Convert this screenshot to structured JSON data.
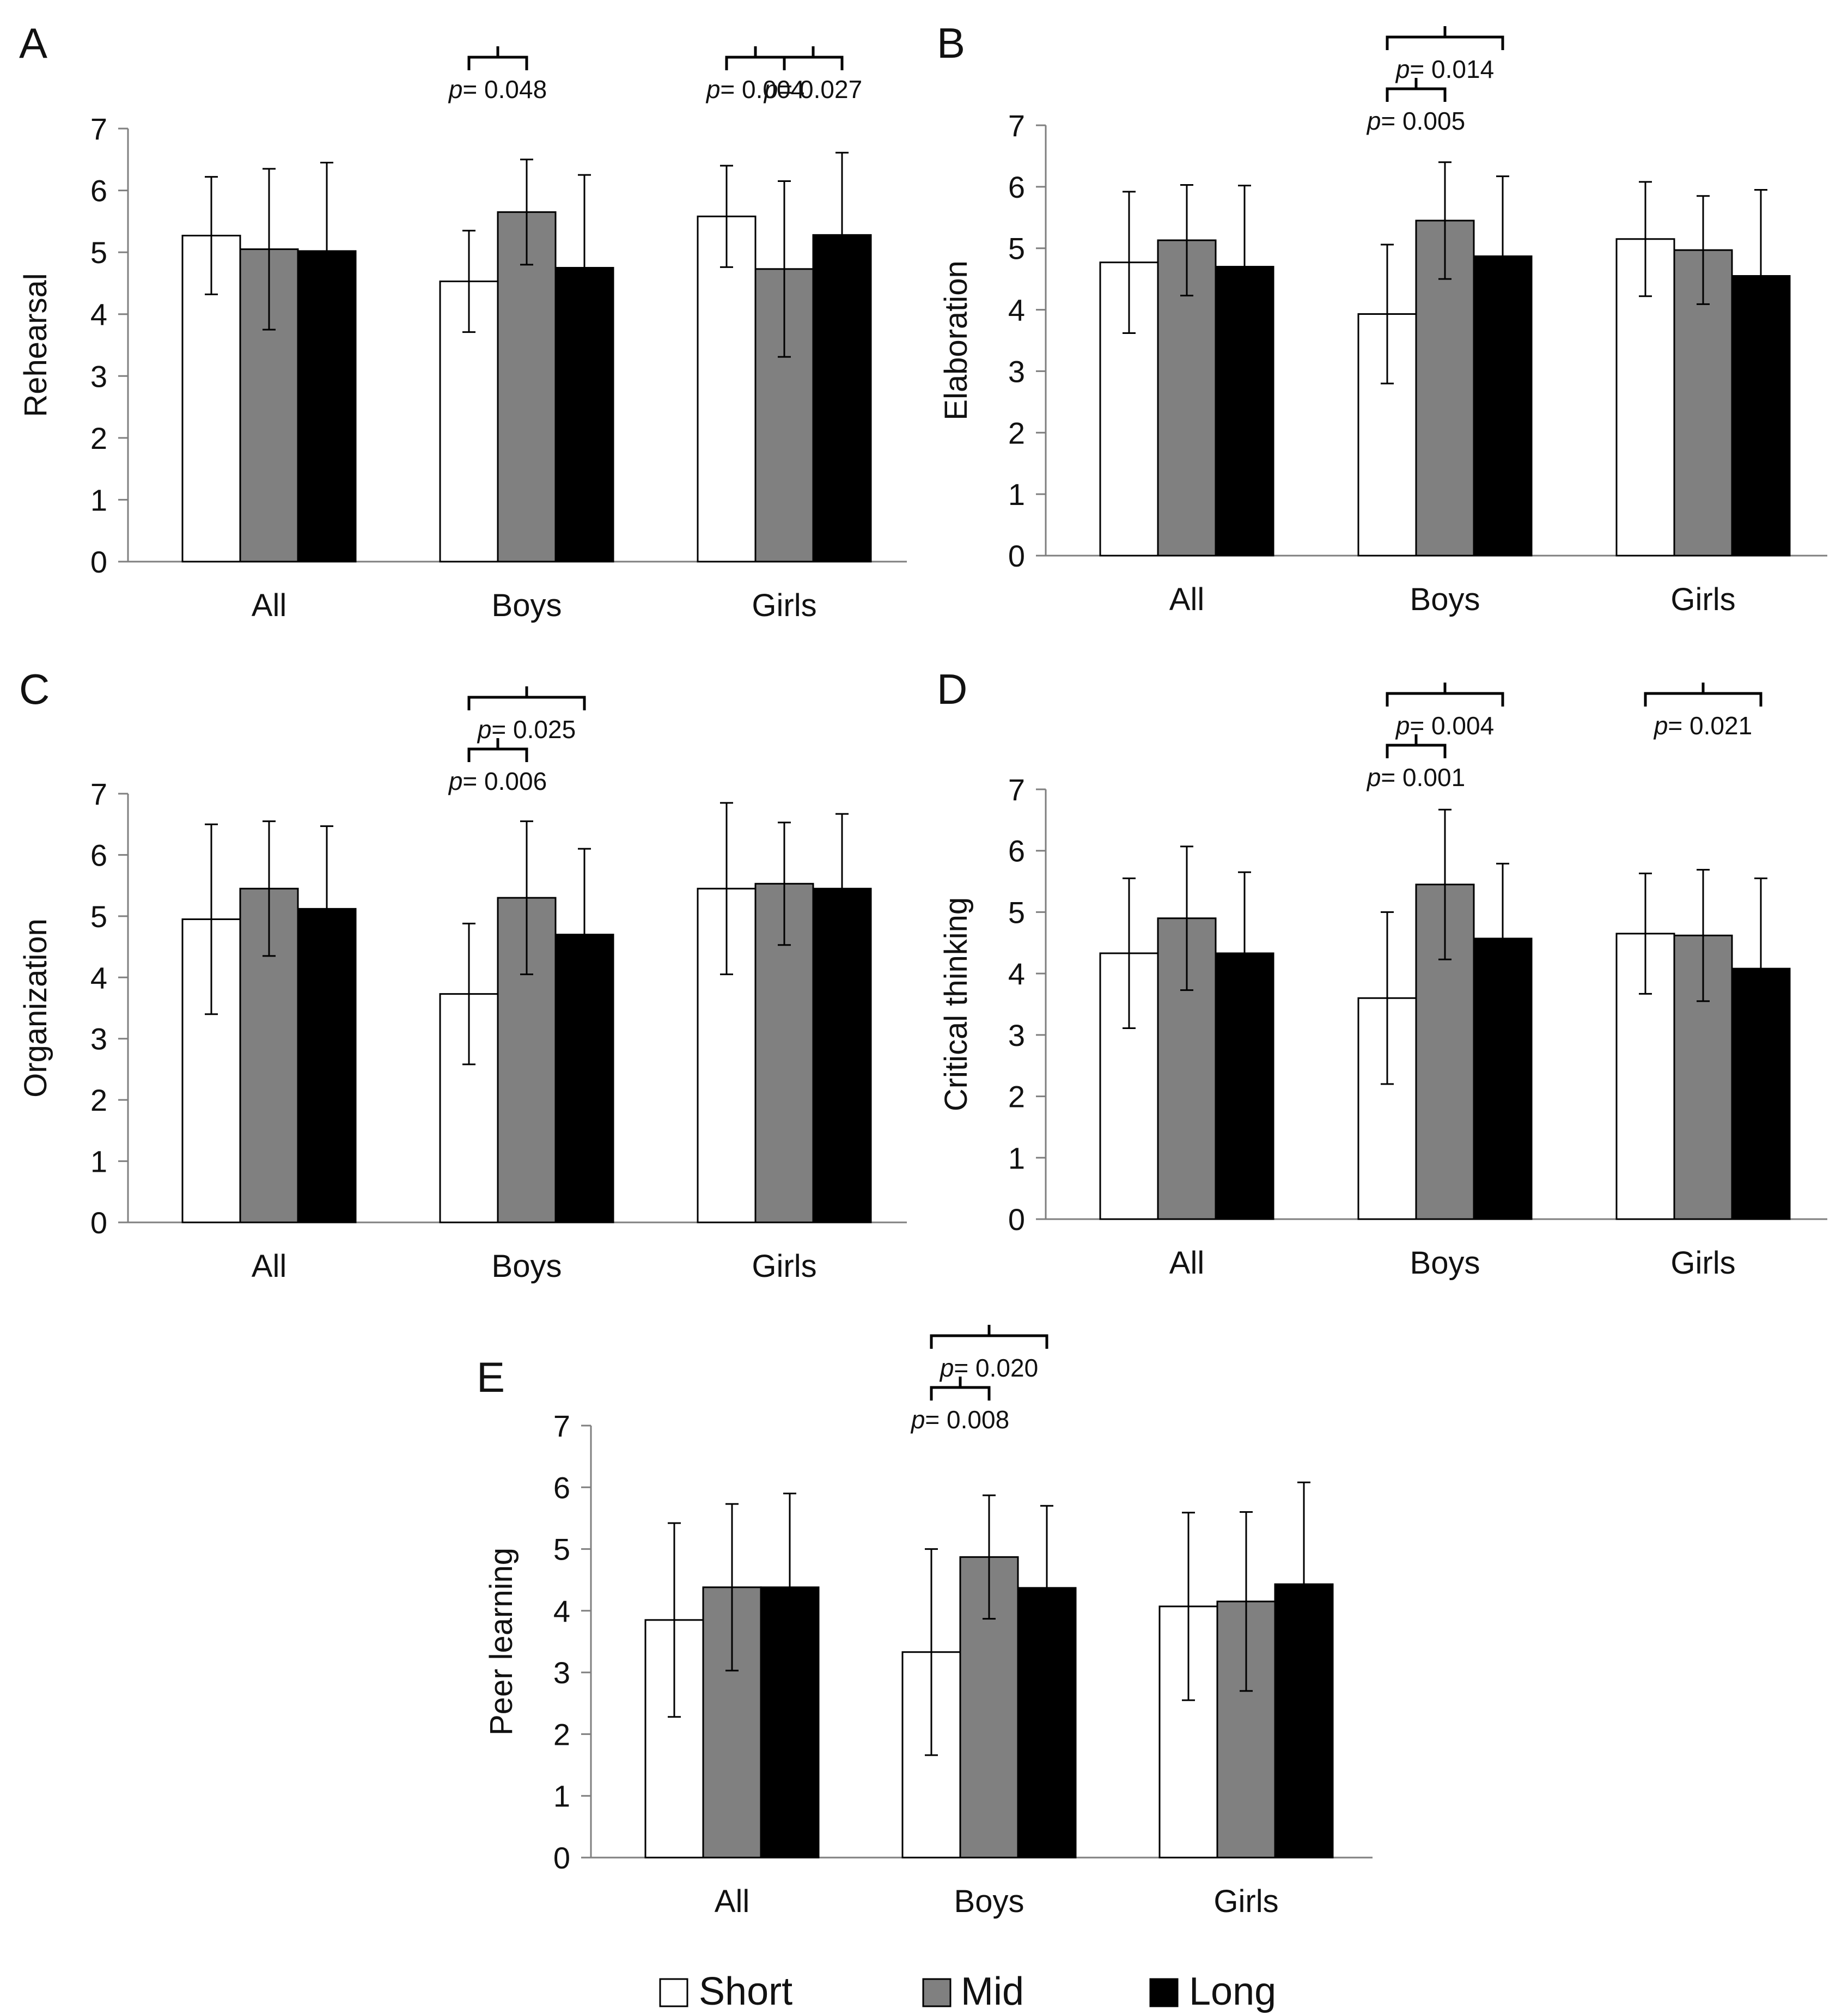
{
  "legend": {
    "items": [
      {
        "label": "Short",
        "color": "#ffffff"
      },
      {
        "label": "Mid",
        "color": "#808080"
      },
      {
        "label": "Long",
        "color": "#000000"
      }
    ]
  },
  "chart_data": [
    {
      "panel": "A",
      "type": "bar",
      "ylabel": "Rehearsal",
      "ylim": [
        0,
        7
      ],
      "yticks": [
        "0",
        "1",
        "2",
        "3",
        "4",
        "5",
        "6",
        "7"
      ],
      "categories": [
        "All",
        "Boys",
        "Girls"
      ],
      "series": [
        {
          "name": "Short",
          "values": [
            5.27,
            4.53,
            5.58
          ],
          "errors": [
            0.95,
            0.82,
            0.82
          ]
        },
        {
          "name": "Mid",
          "values": [
            5.05,
            5.65,
            4.73
          ],
          "errors": [
            1.3,
            0.85,
            1.42
          ]
        },
        {
          "name": "Long",
          "values": [
            5.02,
            4.75,
            5.28
          ],
          "errors": [
            1.43,
            1.5,
            1.33
          ]
        }
      ],
      "annotations": [
        {
          "p": "p",
          "value": "= 0.048",
          "group": 1,
          "from": 0,
          "to": 1,
          "level": 0
        },
        {
          "p": "p",
          "value": "= 0.004",
          "group": 2,
          "from": 0,
          "to": 1,
          "level": 0
        },
        {
          "p": "p",
          "value": "= 0.027",
          "group": 2,
          "from": 1,
          "to": 2,
          "level": 0
        }
      ]
    },
    {
      "panel": "B",
      "type": "bar",
      "ylabel": "Elaboration",
      "ylim": [
        0,
        7
      ],
      "yticks": [
        "0",
        "1",
        "2",
        "3",
        "4",
        "5",
        "6",
        "7"
      ],
      "categories": [
        "All",
        "Boys",
        "Girls"
      ],
      "series": [
        {
          "name": "Short",
          "values": [
            4.77,
            3.93,
            5.15
          ],
          "errors": [
            1.15,
            1.13,
            0.93
          ]
        },
        {
          "name": "Mid",
          "values": [
            5.13,
            5.45,
            4.97
          ],
          "errors": [
            0.9,
            0.95,
            0.88
          ]
        },
        {
          "name": "Long",
          "values": [
            4.7,
            4.87,
            4.55
          ],
          "errors": [
            1.32,
            1.3,
            1.4
          ]
        }
      ],
      "annotations": [
        {
          "p": "p",
          "value": "= 0.005",
          "group": 1,
          "from": 0,
          "to": 1,
          "level": 0
        },
        {
          "p": "p",
          "value": "= 0.014",
          "group": 1,
          "from": 0,
          "to": 2,
          "level": 1
        }
      ]
    },
    {
      "panel": "C",
      "type": "bar",
      "ylabel": "Organization",
      "ylim": [
        0,
        7
      ],
      "yticks": [
        "0",
        "1",
        "2",
        "3",
        "4",
        "5",
        "6",
        "7"
      ],
      "categories": [
        "All",
        "Boys",
        "Girls"
      ],
      "series": [
        {
          "name": "Short",
          "values": [
            4.95,
            3.73,
            5.45
          ],
          "errors": [
            1.55,
            1.15,
            1.4
          ]
        },
        {
          "name": "Mid",
          "values": [
            5.45,
            5.3,
            5.53
          ],
          "errors": [
            1.1,
            1.25,
            1.0
          ]
        },
        {
          "name": "Long",
          "values": [
            5.12,
            4.7,
            5.45
          ],
          "errors": [
            1.35,
            1.4,
            1.22
          ]
        }
      ],
      "annotations": [
        {
          "p": "p",
          "value": "= 0.006",
          "group": 1,
          "from": 0,
          "to": 1,
          "level": 0
        },
        {
          "p": "p",
          "value": "= 0.025",
          "group": 1,
          "from": 0,
          "to": 2,
          "level": 1
        }
      ]
    },
    {
      "panel": "D",
      "type": "bar",
      "ylabel": "Critical thinking",
      "ylim": [
        0,
        7
      ],
      "yticks": [
        "0",
        "1",
        "2",
        "3",
        "4",
        "5",
        "6",
        "7"
      ],
      "categories": [
        "All",
        "Boys",
        "Girls"
      ],
      "series": [
        {
          "name": "Short",
          "values": [
            4.33,
            3.6,
            4.65
          ],
          "errors": [
            1.22,
            1.4,
            0.98
          ]
        },
        {
          "name": "Mid",
          "values": [
            4.9,
            5.45,
            4.62
          ],
          "errors": [
            1.17,
            1.22,
            1.07
          ]
        },
        {
          "name": "Long",
          "values": [
            4.33,
            4.57,
            4.08
          ],
          "errors": [
            1.32,
            1.22,
            1.47
          ]
        }
      ],
      "annotations": [
        {
          "p": "p",
          "value": "= 0.001",
          "group": 1,
          "from": 0,
          "to": 1,
          "level": 0
        },
        {
          "p": "p",
          "value": "= 0.004",
          "group": 1,
          "from": 0,
          "to": 2,
          "level": 1
        },
        {
          "p": "p",
          "value": "= 0.021",
          "group": 2,
          "from": 0,
          "to": 2,
          "level": 1
        }
      ]
    },
    {
      "panel": "E",
      "type": "bar",
      "ylabel": "Peer learning",
      "ylim": [
        0,
        7
      ],
      "yticks": [
        "0",
        "1",
        "2",
        "3",
        "4",
        "5",
        "6",
        "7"
      ],
      "categories": [
        "All",
        "Boys",
        "Girls"
      ],
      "series": [
        {
          "name": "Short",
          "values": [
            3.85,
            3.33,
            4.07
          ],
          "errors": [
            1.57,
            1.67,
            1.52
          ]
        },
        {
          "name": "Mid",
          "values": [
            4.38,
            4.87,
            4.15
          ],
          "errors": [
            1.35,
            1.0,
            1.45
          ]
        },
        {
          "name": "Long",
          "values": [
            4.38,
            4.37,
            4.43
          ],
          "errors": [
            1.52,
            1.33,
            1.65
          ]
        }
      ],
      "annotations": [
        {
          "p": "p",
          "value": "= 0.008",
          "group": 1,
          "from": 0,
          "to": 1,
          "level": 0
        },
        {
          "p": "p",
          "value": "= 0.020",
          "group": 1,
          "from": 0,
          "to": 2,
          "level": 1
        }
      ]
    }
  ]
}
